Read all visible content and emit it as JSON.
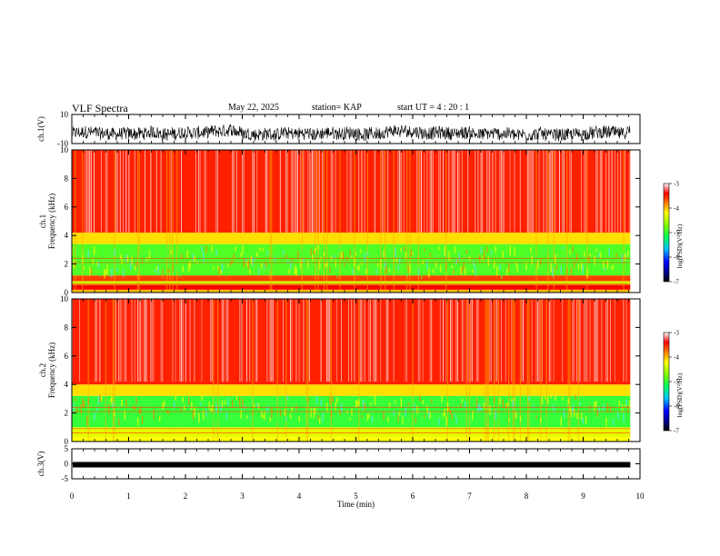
{
  "header": {
    "title": "VLF Spectra",
    "date": "May 22, 2025",
    "station": "station= KAP",
    "start": "start UT =  4 : 20 : 1"
  },
  "chart_data": [
    {
      "type": "line",
      "panel": "ch1-waveform",
      "ylabel": "ch.1(V)",
      "yticks": [
        "10",
        "-10"
      ],
      "ylim": [
        -10,
        10
      ],
      "xlim": [
        0,
        10
      ],
      "x_end": 9.83,
      "color": "#000000",
      "description_level": "noisy trace between about -9 and 3"
    },
    {
      "type": "heatmap",
      "panel": "ch1-spectrogram",
      "ylabel_line1": "ch.1",
      "ylabel_line2": "Frequency (kHz)",
      "yticks": [
        "0",
        "2",
        "4",
        "6",
        "8",
        "10"
      ],
      "ylim": [
        0,
        10
      ],
      "xlim": [
        0,
        10
      ],
      "x_end": 9.83,
      "colorbar_label": "log(PSD)(V²/Hz)",
      "colorbar_ticks": [
        "-3",
        "-4",
        "-5",
        "-6",
        "-7"
      ],
      "colorbar_range": [
        -7,
        -3
      ],
      "bands": [
        {
          "f_low": 0.0,
          "f_high": 0.2,
          "level": -4.0
        },
        {
          "f_low": 0.2,
          "f_high": 0.55,
          "level": -3.4
        },
        {
          "f_low": 0.55,
          "f_high": 0.8,
          "level": -4.4
        },
        {
          "f_low": 0.8,
          "f_high": 1.2,
          "level": -3.6
        },
        {
          "f_low": 1.2,
          "f_high": 3.4,
          "level": -4.9
        },
        {
          "f_low": 3.4,
          "f_high": 4.2,
          "level": -4.1
        },
        {
          "f_low": 4.2,
          "f_high": 10.0,
          "level": -3.5
        }
      ]
    },
    {
      "type": "heatmap",
      "panel": "ch2-spectrogram",
      "ylabel_line1": "ch.2",
      "ylabel_line2": "Frequency (kHz)",
      "yticks": [
        "0",
        "2",
        "4",
        "6",
        "8",
        "10"
      ],
      "ylim": [
        0,
        10
      ],
      "xlim": [
        0,
        10
      ],
      "x_end": 9.83,
      "colorbar_label": "log(PSD)(V²/Hz)",
      "colorbar_ticks": [
        "-3",
        "-4",
        "-5",
        "-6",
        "-7"
      ],
      "colorbar_range": [
        -7,
        -3
      ],
      "bands": [
        {
          "f_low": 0.0,
          "f_high": 0.3,
          "level": -4.2
        },
        {
          "f_low": 0.3,
          "f_high": 1.0,
          "level": -4.3
        },
        {
          "f_low": 1.0,
          "f_high": 3.2,
          "level": -5.0
        },
        {
          "f_low": 3.2,
          "f_high": 4.0,
          "level": -4.1
        },
        {
          "f_low": 4.0,
          "f_high": 10.0,
          "level": -3.5
        }
      ]
    },
    {
      "type": "line",
      "panel": "ch3-waveform",
      "ylabel": "ch.3(V)",
      "yticks": [
        "5",
        "0",
        "-5"
      ],
      "ylim": [
        -5,
        5
      ],
      "xlim": [
        0,
        10
      ],
      "x_end": 9.83,
      "level": -0.3,
      "color": "#000000"
    }
  ],
  "xaxis": {
    "label": "Time (min)",
    "ticks": [
      "0",
      "1",
      "2",
      "3",
      "4",
      "5",
      "6",
      "7",
      "8",
      "9",
      "10"
    ]
  }
}
